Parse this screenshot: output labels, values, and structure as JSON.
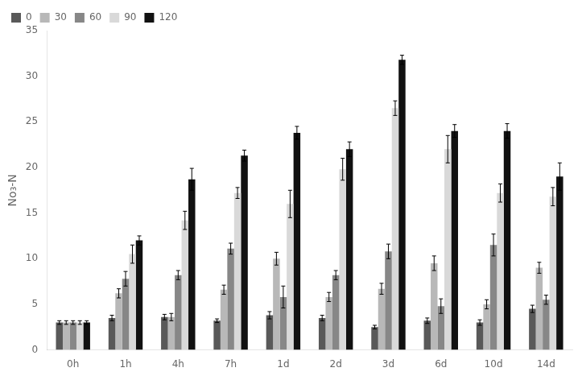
{
  "chart_data": {
    "type": "bar",
    "ylabel": "No₃-N",
    "categories": [
      "0h",
      "1h",
      "4h",
      "7h",
      "1d",
      "2d",
      "3d",
      "6d",
      "10d",
      "14d"
    ],
    "series": [
      {
        "name": "0",
        "color": "#595959",
        "values": [
          3.0,
          3.5,
          3.6,
          3.2,
          3.8,
          3.5,
          2.5,
          3.2,
          3.0,
          4.5
        ],
        "errors": [
          0.2,
          0.3,
          0.3,
          0.2,
          0.4,
          0.3,
          0.2,
          0.3,
          0.3,
          0.4
        ]
      },
      {
        "name": "30",
        "color": "#b8b8b8",
        "values": [
          3.0,
          6.2,
          3.6,
          6.6,
          10.0,
          5.8,
          6.7,
          9.5,
          5.0,
          9.0
        ],
        "errors": [
          0.2,
          0.5,
          0.4,
          0.5,
          0.7,
          0.5,
          0.6,
          0.8,
          0.5,
          0.6
        ]
      },
      {
        "name": "60",
        "color": "#878787",
        "values": [
          3.0,
          7.8,
          8.2,
          11.1,
          5.8,
          8.2,
          10.8,
          4.8,
          11.5,
          5.5
        ],
        "errors": [
          0.2,
          0.8,
          0.5,
          0.6,
          1.2,
          0.5,
          0.8,
          0.8,
          1.2,
          0.5
        ]
      },
      {
        "name": "90",
        "color": "#d9d9d9",
        "values": [
          3.0,
          10.5,
          14.2,
          17.2,
          16.0,
          19.8,
          26.5,
          22.0,
          17.2,
          16.8
        ],
        "errors": [
          0.2,
          1.0,
          1.0,
          0.6,
          1.5,
          1.2,
          0.8,
          1.5,
          1.0,
          1.0
        ]
      },
      {
        "name": "120",
        "color": "#111111",
        "values": [
          3.0,
          12.0,
          18.7,
          21.3,
          23.8,
          22.0,
          31.8,
          24.0,
          24.0,
          19.0
        ],
        "errors": [
          0.2,
          0.5,
          1.2,
          0.6,
          0.7,
          0.8,
          0.5,
          0.7,
          0.8,
          1.5
        ]
      }
    ],
    "ylim": [
      0,
      35
    ],
    "yticks": [
      0,
      5,
      10,
      15,
      20,
      25,
      30,
      35
    ],
    "grid": false,
    "legend": "upper left"
  }
}
